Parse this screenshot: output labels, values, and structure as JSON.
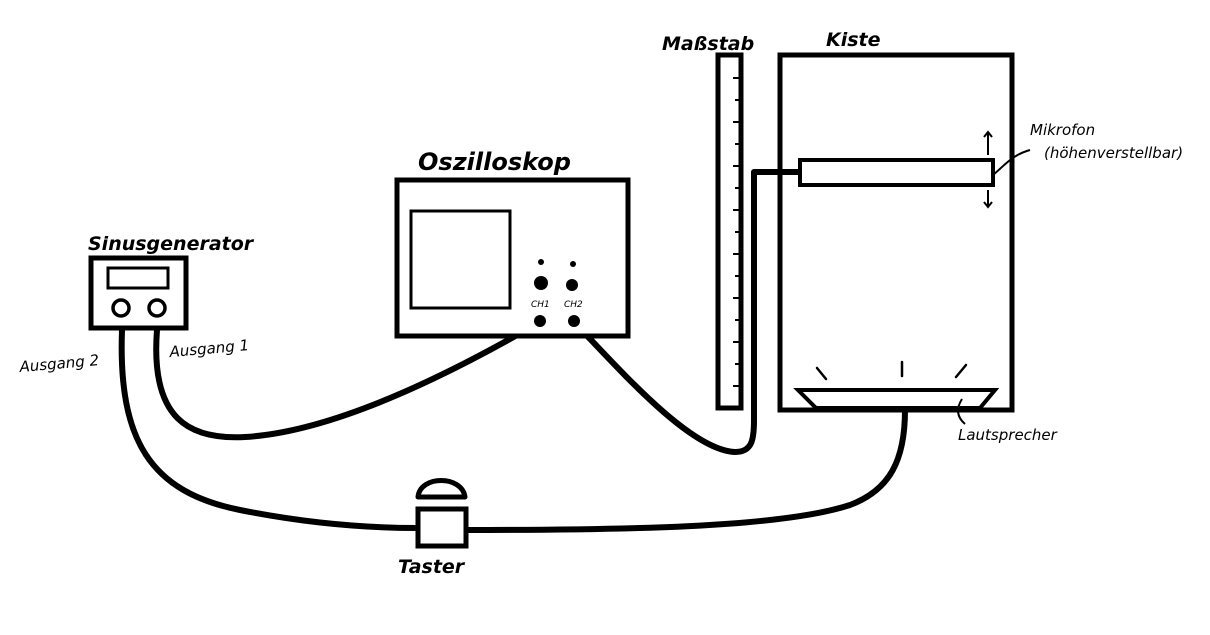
{
  "labels": {
    "sinusgenerator": "Sinusgenerator",
    "ausgang_1": "Ausgang 1",
    "ausgang_2": "Ausgang 2",
    "oszilloskop": "Oszilloskop",
    "ch1": "CH1",
    "ch2": "CH2",
    "massstab": "Maßstab",
    "kiste": "Kiste",
    "mikrofon": "Mikrofon",
    "mikrofon_note": "(höhenverstellbar)",
    "lautsprecher": "Lautsprecher",
    "taster": "Taster"
  },
  "colors": {
    "ink": "#000000",
    "paper": "#ffffff"
  }
}
